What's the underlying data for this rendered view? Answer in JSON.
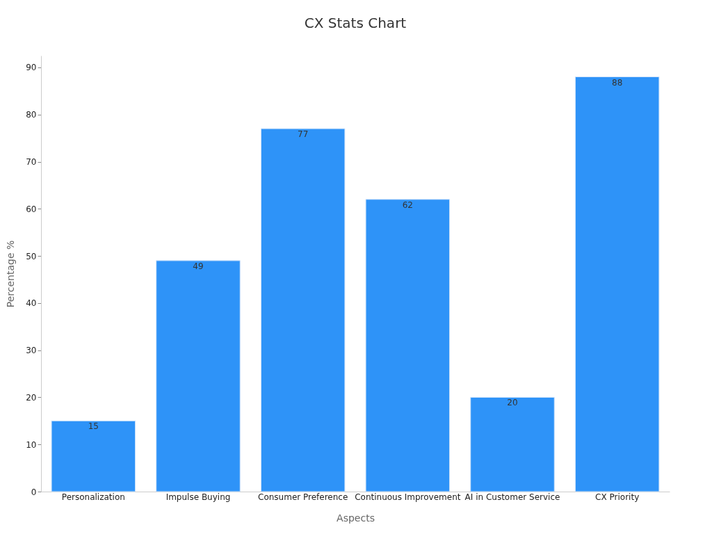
{
  "chart_data": {
    "type": "bar",
    "title": "CX Stats Chart",
    "xlabel": "Aspects",
    "ylabel": "Percentage %",
    "categories": [
      "Personalization",
      "Impulse Buying",
      "Consumer Preference",
      "Continuous Improvement",
      "AI in Customer Service",
      "CX Priority"
    ],
    "values": [
      15,
      49,
      77,
      62,
      20,
      88
    ],
    "color": "#2e93f8",
    "ylim": [
      0,
      92.5
    ],
    "yticks": [
      0,
      10,
      20,
      30,
      40,
      50,
      60,
      70,
      80,
      90
    ],
    "data_labels": true
  }
}
